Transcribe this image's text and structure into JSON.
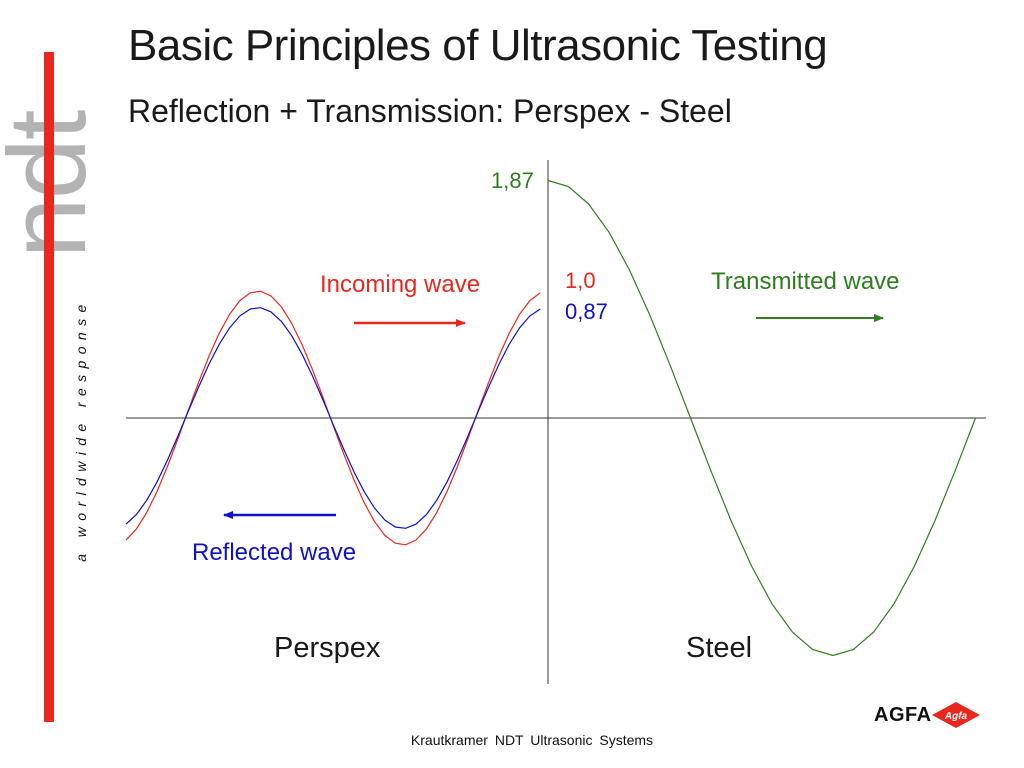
{
  "slide": {
    "title": "Basic Principles of Ultrasonic Testing",
    "subtitle": "Reflection + Transmission:  Perspex - Steel",
    "footer": "Krautkramer  NDT  Ultrasonic  Systems"
  },
  "branding": {
    "logo_text": "ndt",
    "tagline": "a worldwide response",
    "company_logo_text": "AGFA",
    "company_badge_text": "Agfa",
    "accent_color": "#e8281e",
    "logo_gray": "#b3b3b3"
  },
  "diagram": {
    "media": {
      "left": "Perspex",
      "right": "Steel"
    },
    "waves": {
      "incoming": {
        "label": "Incoming wave",
        "amplitude_label": "1,0",
        "amplitude": 1.0,
        "color": "#e8281e",
        "direction": "right"
      },
      "reflected": {
        "label": "Reflected wave",
        "amplitude_label": "0,87",
        "amplitude": 0.87,
        "color": "#1010c8",
        "direction": "left"
      },
      "transmitted": {
        "label": "Transmitted wave",
        "amplitude_label": "1,87",
        "amplitude": 1.87,
        "color": "#2e7d1e",
        "direction": "right"
      }
    }
  }
}
